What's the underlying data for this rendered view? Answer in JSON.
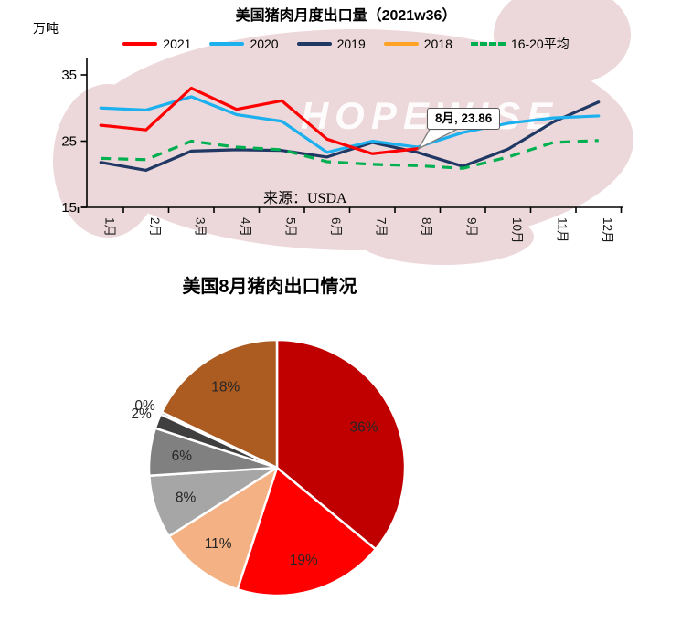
{
  "watermark": {
    "text": "HOPEWISE",
    "color": "#ECD7DA"
  },
  "chart_data": [
    {
      "type": "line",
      "title": "美国猪肉月度出口量（2021w36）",
      "ylabel": "万吨",
      "source": "来源：USDA",
      "ylim": [
        15,
        37
      ],
      "yticks": [
        15,
        25,
        35
      ],
      "categories": [
        "1月",
        "2月",
        "3月",
        "4月",
        "5月",
        "6月",
        "7月",
        "8月",
        "9月",
        "10月",
        "11月",
        "12月"
      ],
      "legend_position": "top",
      "grid": false,
      "annotation": {
        "text": "8月, 23.86",
        "series": "2021",
        "month": "8月",
        "value": 23.86
      },
      "series": [
        {
          "name": "2021",
          "color": "#FF0000",
          "style": "solid",
          "values": [
            27.4,
            26.7,
            33.0,
            29.8,
            31.1,
            25.3,
            23.1,
            23.86
          ]
        },
        {
          "name": "2020",
          "color": "#1CB0EE",
          "style": "solid",
          "values": [
            30.0,
            29.7,
            31.7,
            29.0,
            28.0,
            23.3,
            25.0,
            24.1,
            26.3,
            27.7,
            28.5,
            28.8
          ]
        },
        {
          "name": "2019",
          "color": "#1F3864",
          "style": "solid",
          "values": [
            21.8,
            20.6,
            23.5,
            23.7,
            23.6,
            22.6,
            24.8,
            23.3,
            21.2,
            23.8,
            27.9,
            30.9
          ]
        },
        {
          "name": "2018",
          "color": "#FFA226",
          "style": "solid",
          "values": []
        },
        {
          "name": "16-20平均",
          "color": "#00B050",
          "style": "dashed",
          "values": [
            22.4,
            22.2,
            25.0,
            24.1,
            23.7,
            21.9,
            21.5,
            21.3,
            20.9,
            22.6,
            24.8,
            25.1
          ]
        }
      ]
    },
    {
      "type": "pie",
      "title": "美国8月猪肉出口情况",
      "labels": [
        "36%",
        "19%",
        "11%",
        "8%",
        "6%",
        "2%",
        "0%",
        "18%"
      ],
      "values": [
        36,
        19,
        11,
        8,
        6,
        2,
        0,
        18
      ],
      "colors": [
        "#C00000",
        "#FF0000",
        "#F4B183",
        "#A6A6A6",
        "#808080",
        "#3F3F3F",
        "#191919",
        "#AC5B21"
      ],
      "start_angle_deg": 0,
      "direction": "clockwise",
      "legend": "none"
    }
  ]
}
